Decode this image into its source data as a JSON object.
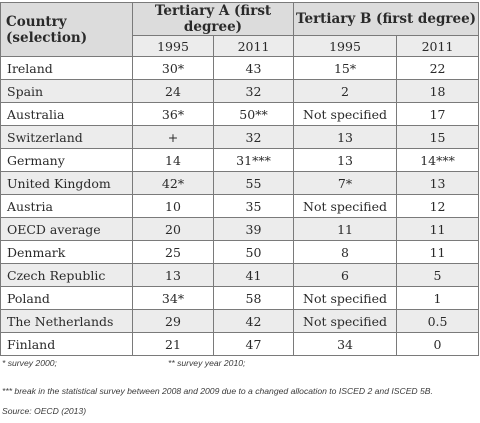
{
  "header": {
    "country_label": "Country (selection)",
    "group_a": "Tertiary A (first degree)",
    "group_b": "Tertiary B (first degree)"
  },
  "years": [
    "1995",
    "2011",
    "1995",
    "2011"
  ],
  "rows": [
    {
      "country": "Ireland",
      "a1995": "30*",
      "a2011": "43",
      "b1995": "15*",
      "b2011": "22"
    },
    {
      "country": "Spain",
      "a1995": "24",
      "a2011": "32",
      "b1995": "2",
      "b2011": "18"
    },
    {
      "country": "Australia",
      "a1995": "36*",
      "a2011": "50**",
      "b1995": "Not specified",
      "b2011": "17"
    },
    {
      "country": "Switzerland",
      "a1995": "+",
      "a2011": "32",
      "b1995": "13",
      "b2011": "15"
    },
    {
      "country": "Germany",
      "a1995": "14",
      "a2011": "31***",
      "b1995": "13",
      "b2011": "14***"
    },
    {
      "country": "United Kingdom",
      "a1995": "42*",
      "a2011": "55",
      "b1995": "7*",
      "b2011": "13"
    },
    {
      "country": "Austria",
      "a1995": "10",
      "a2011": "35",
      "b1995": "Not specified",
      "b2011": "12"
    },
    {
      "country": "OECD average",
      "a1995": "20",
      "a2011": "39",
      "b1995": "11",
      "b2011": "11"
    },
    {
      "country": "Denmark",
      "a1995": "25",
      "a2011": "50",
      "b1995": "8",
      "b2011": "11"
    },
    {
      "country": "Czech Republic",
      "a1995": "13",
      "a2011": "41",
      "b1995": "6",
      "b2011": "5"
    },
    {
      "country": "Poland",
      "a1995": "34*",
      "a2011": "58",
      "b1995": "Not specified",
      "b2011": "1"
    },
    {
      "country": "The Netherlands",
      "a1995": "29",
      "a2011": "42",
      "b1995": "Not specified",
      "b2011": "0.5"
    },
    {
      "country": "Finland",
      "a1995": "21",
      "a2011": "47",
      "b1995": "34",
      "b2011": "0"
    }
  ],
  "footnotes": {
    "survey_2000": "* survey 2000;",
    "survey_2010": "** survey year 2010;",
    "break_note": "*** break in the statistical survey between 2008 and 2009 due to a changed allocation to ISCED 2 and ISCED 5B.",
    "source": "Source: OECD (2013)"
  }
}
